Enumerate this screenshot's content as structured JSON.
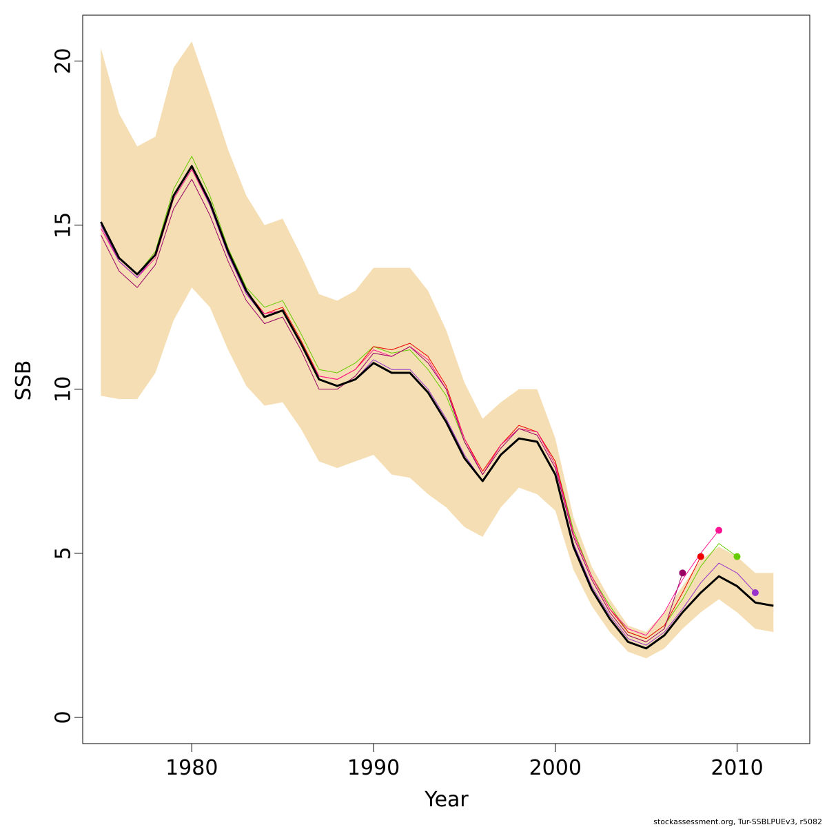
{
  "chart_data": {
    "type": "line",
    "title": "",
    "xlabel": "Year",
    "ylabel": "SSB",
    "xlim": [
      1974,
      2014
    ],
    "ylim": [
      -0.8,
      21.4
    ],
    "x_ticks": [
      1980,
      1990,
      2000,
      2010
    ],
    "x_tick_labels": [
      "1980",
      "1990",
      "2000",
      "2010"
    ],
    "y_ticks": [
      0,
      5,
      10,
      15,
      20
    ],
    "y_tick_labels": [
      "0",
      "5",
      "10",
      "15",
      "20"
    ],
    "grid": false,
    "band": {
      "color": "#F5DEB3",
      "x": [
        1975,
        1976,
        1977,
        1978,
        1979,
        1980,
        1981,
        1982,
        1983,
        1984,
        1985,
        1986,
        1987,
        1988,
        1989,
        1990,
        1991,
        1992,
        1993,
        1994,
        1995,
        1996,
        1997,
        1998,
        1999,
        2000,
        2001,
        2002,
        2003,
        2004,
        2005,
        2006,
        2007,
        2008,
        2009,
        2010,
        2011,
        2012
      ],
      "upper": [
        20.4,
        18.4,
        17.4,
        17.7,
        19.8,
        20.6,
        19.0,
        17.3,
        15.9,
        15.0,
        15.2,
        14.1,
        12.9,
        12.7,
        13.0,
        13.7,
        13.7,
        13.7,
        13.0,
        11.8,
        10.2,
        9.1,
        9.6,
        10.0,
        10.0,
        8.5,
        6.1,
        4.6,
        3.6,
        2.8,
        2.6,
        3.2,
        4.0,
        4.8,
        5.2,
        4.9,
        4.4,
        4.4
      ],
      "lower": [
        9.8,
        9.7,
        9.7,
        10.5,
        12.1,
        13.1,
        12.5,
        11.2,
        10.1,
        9.5,
        9.6,
        8.8,
        7.8,
        7.6,
        7.8,
        8.0,
        7.4,
        7.3,
        6.8,
        6.4,
        5.8,
        5.5,
        6.4,
        7.0,
        6.8,
        6.3,
        4.5,
        3.4,
        2.6,
        2.0,
        1.8,
        2.1,
        2.7,
        3.2,
        3.6,
        3.2,
        2.7,
        2.6
      ]
    },
    "series": [
      {
        "color": "#66CC00",
        "width": 1,
        "x": [
          1975,
          1976,
          1977,
          1978,
          1979,
          1980,
          1981,
          1982,
          1983,
          1984,
          1985,
          1986,
          1987,
          1988,
          1989,
          1990,
          1991,
          1992,
          1993,
          1994,
          1995,
          1996,
          1997,
          1998,
          1999,
          2000,
          2001,
          2002,
          2003,
          2004,
          2005,
          2006,
          2007,
          2008,
          2009,
          2010
        ],
        "y": [
          15.0,
          14.0,
          13.5,
          14.2,
          16.1,
          17.1,
          15.9,
          14.3,
          13.1,
          12.5,
          12.7,
          11.7,
          10.6,
          10.5,
          10.8,
          11.3,
          11.1,
          11.2,
          10.6,
          9.8,
          8.4,
          7.4,
          8.3,
          8.8,
          8.7,
          7.8,
          5.7,
          4.3,
          3.4,
          2.6,
          2.4,
          2.8,
          3.6,
          4.6,
          5.3,
          4.9
        ],
        "end_marker": true
      },
      {
        "color": "#EE0000",
        "width": 1,
        "x": [
          1975,
          1976,
          1977,
          1978,
          1979,
          1980,
          1981,
          1982,
          1983,
          1984,
          1985,
          1986,
          1987,
          1988,
          1989,
          1990,
          1991,
          1992,
          1993,
          1994,
          1995,
          1996,
          1997,
          1998,
          1999,
          2000,
          2001,
          2002,
          2003,
          2004,
          2005,
          2006,
          2007,
          2008
        ],
        "y": [
          15.0,
          13.9,
          13.4,
          14.1,
          15.9,
          16.8,
          15.7,
          14.2,
          13.0,
          12.3,
          12.5,
          11.5,
          10.4,
          10.3,
          10.6,
          11.3,
          11.2,
          11.4,
          11.0,
          10.1,
          8.5,
          7.5,
          8.3,
          8.9,
          8.7,
          7.8,
          5.6,
          4.3,
          3.3,
          2.6,
          2.4,
          2.8,
          3.8,
          4.9
        ],
        "end_marker": true
      },
      {
        "color": "#FF1493",
        "width": 1,
        "x": [
          1975,
          1976,
          1977,
          1978,
          1979,
          1980,
          1981,
          1982,
          1983,
          1984,
          1985,
          1986,
          1987,
          1988,
          1989,
          1990,
          1991,
          1992,
          1993,
          1994,
          1995,
          1996,
          1997,
          1998,
          1999,
          2000,
          2001,
          2002,
          2003,
          2004,
          2005,
          2006,
          2007,
          2008,
          2009
        ],
        "y": [
          14.9,
          13.9,
          13.4,
          14.0,
          15.8,
          16.7,
          15.6,
          14.1,
          12.9,
          12.3,
          12.4,
          11.4,
          10.4,
          10.3,
          10.6,
          11.2,
          11.0,
          11.3,
          10.9,
          10.0,
          8.5,
          7.4,
          8.3,
          8.8,
          8.7,
          7.7,
          5.6,
          4.3,
          3.3,
          2.7,
          2.5,
          3.2,
          4.2,
          5.0,
          5.7
        ],
        "end_marker": true
      },
      {
        "color": "#990066",
        "width": 1,
        "x": [
          1975,
          1976,
          1977,
          1978,
          1979,
          1980,
          1981,
          1982,
          1983,
          1984,
          1985,
          1986,
          1987,
          1988,
          1989,
          1990,
          1991,
          1992,
          1993,
          1994,
          1995,
          1996,
          1997,
          1998,
          1999,
          2000,
          2001,
          2002,
          2003,
          2004,
          2005,
          2006,
          2007
        ],
        "y": [
          14.7,
          13.6,
          13.1,
          13.8,
          15.5,
          16.4,
          15.3,
          13.9,
          12.7,
          12.0,
          12.2,
          11.2,
          10.0,
          10.0,
          10.4,
          11.1,
          11.0,
          11.3,
          10.8,
          10.0,
          8.4,
          7.4,
          8.2,
          8.8,
          8.6,
          7.6,
          5.5,
          4.2,
          3.2,
          2.5,
          2.3,
          2.7,
          4.4
        ],
        "end_marker": true
      },
      {
        "color": "#9933CC",
        "width": 1,
        "x": [
          1975,
          1976,
          1977,
          1978,
          1979,
          1980,
          1981,
          1982,
          1983,
          1984,
          1985,
          1986,
          1987,
          1988,
          1989,
          1990,
          1991,
          1992,
          1993,
          1994,
          1995,
          1996,
          1997,
          1998,
          1999,
          2000,
          2001,
          2002,
          2003,
          2004,
          2005,
          2006,
          2007,
          2008,
          2009,
          2010,
          2011
        ],
        "y": [
          15.0,
          13.9,
          13.4,
          14.1,
          15.9,
          16.8,
          15.6,
          14.1,
          12.9,
          12.2,
          12.4,
          11.4,
          10.3,
          10.1,
          10.3,
          10.9,
          10.6,
          10.6,
          10.0,
          9.1,
          8.0,
          7.2,
          8.0,
          8.5,
          8.4,
          7.4,
          5.3,
          4.0,
          3.1,
          2.4,
          2.2,
          2.6,
          3.3,
          4.1,
          4.7,
          4.4,
          3.8
        ],
        "end_marker": true
      },
      {
        "color": "#000000",
        "width": 3,
        "x": [
          1975,
          1976,
          1977,
          1978,
          1979,
          1980,
          1981,
          1982,
          1983,
          1984,
          1985,
          1986,
          1987,
          1988,
          1989,
          1990,
          1991,
          1992,
          1993,
          1994,
          1995,
          1996,
          1997,
          1998,
          1999,
          2000,
          2001,
          2002,
          2003,
          2004,
          2005,
          2006,
          2007,
          2008,
          2009,
          2010,
          2011,
          2012
        ],
        "y": [
          15.1,
          14.0,
          13.5,
          14.1,
          15.9,
          16.8,
          15.7,
          14.2,
          13.0,
          12.2,
          12.4,
          11.4,
          10.3,
          10.1,
          10.3,
          10.8,
          10.5,
          10.5,
          9.9,
          9.0,
          7.9,
          7.2,
          8.0,
          8.5,
          8.4,
          7.4,
          5.2,
          3.9,
          3.0,
          2.3,
          2.1,
          2.5,
          3.2,
          3.8,
          4.3,
          4.0,
          3.5,
          3.4
        ],
        "end_marker": false
      }
    ],
    "footer": "stockassessment.org, Tur-SSBLPUEv3, r5082"
  }
}
